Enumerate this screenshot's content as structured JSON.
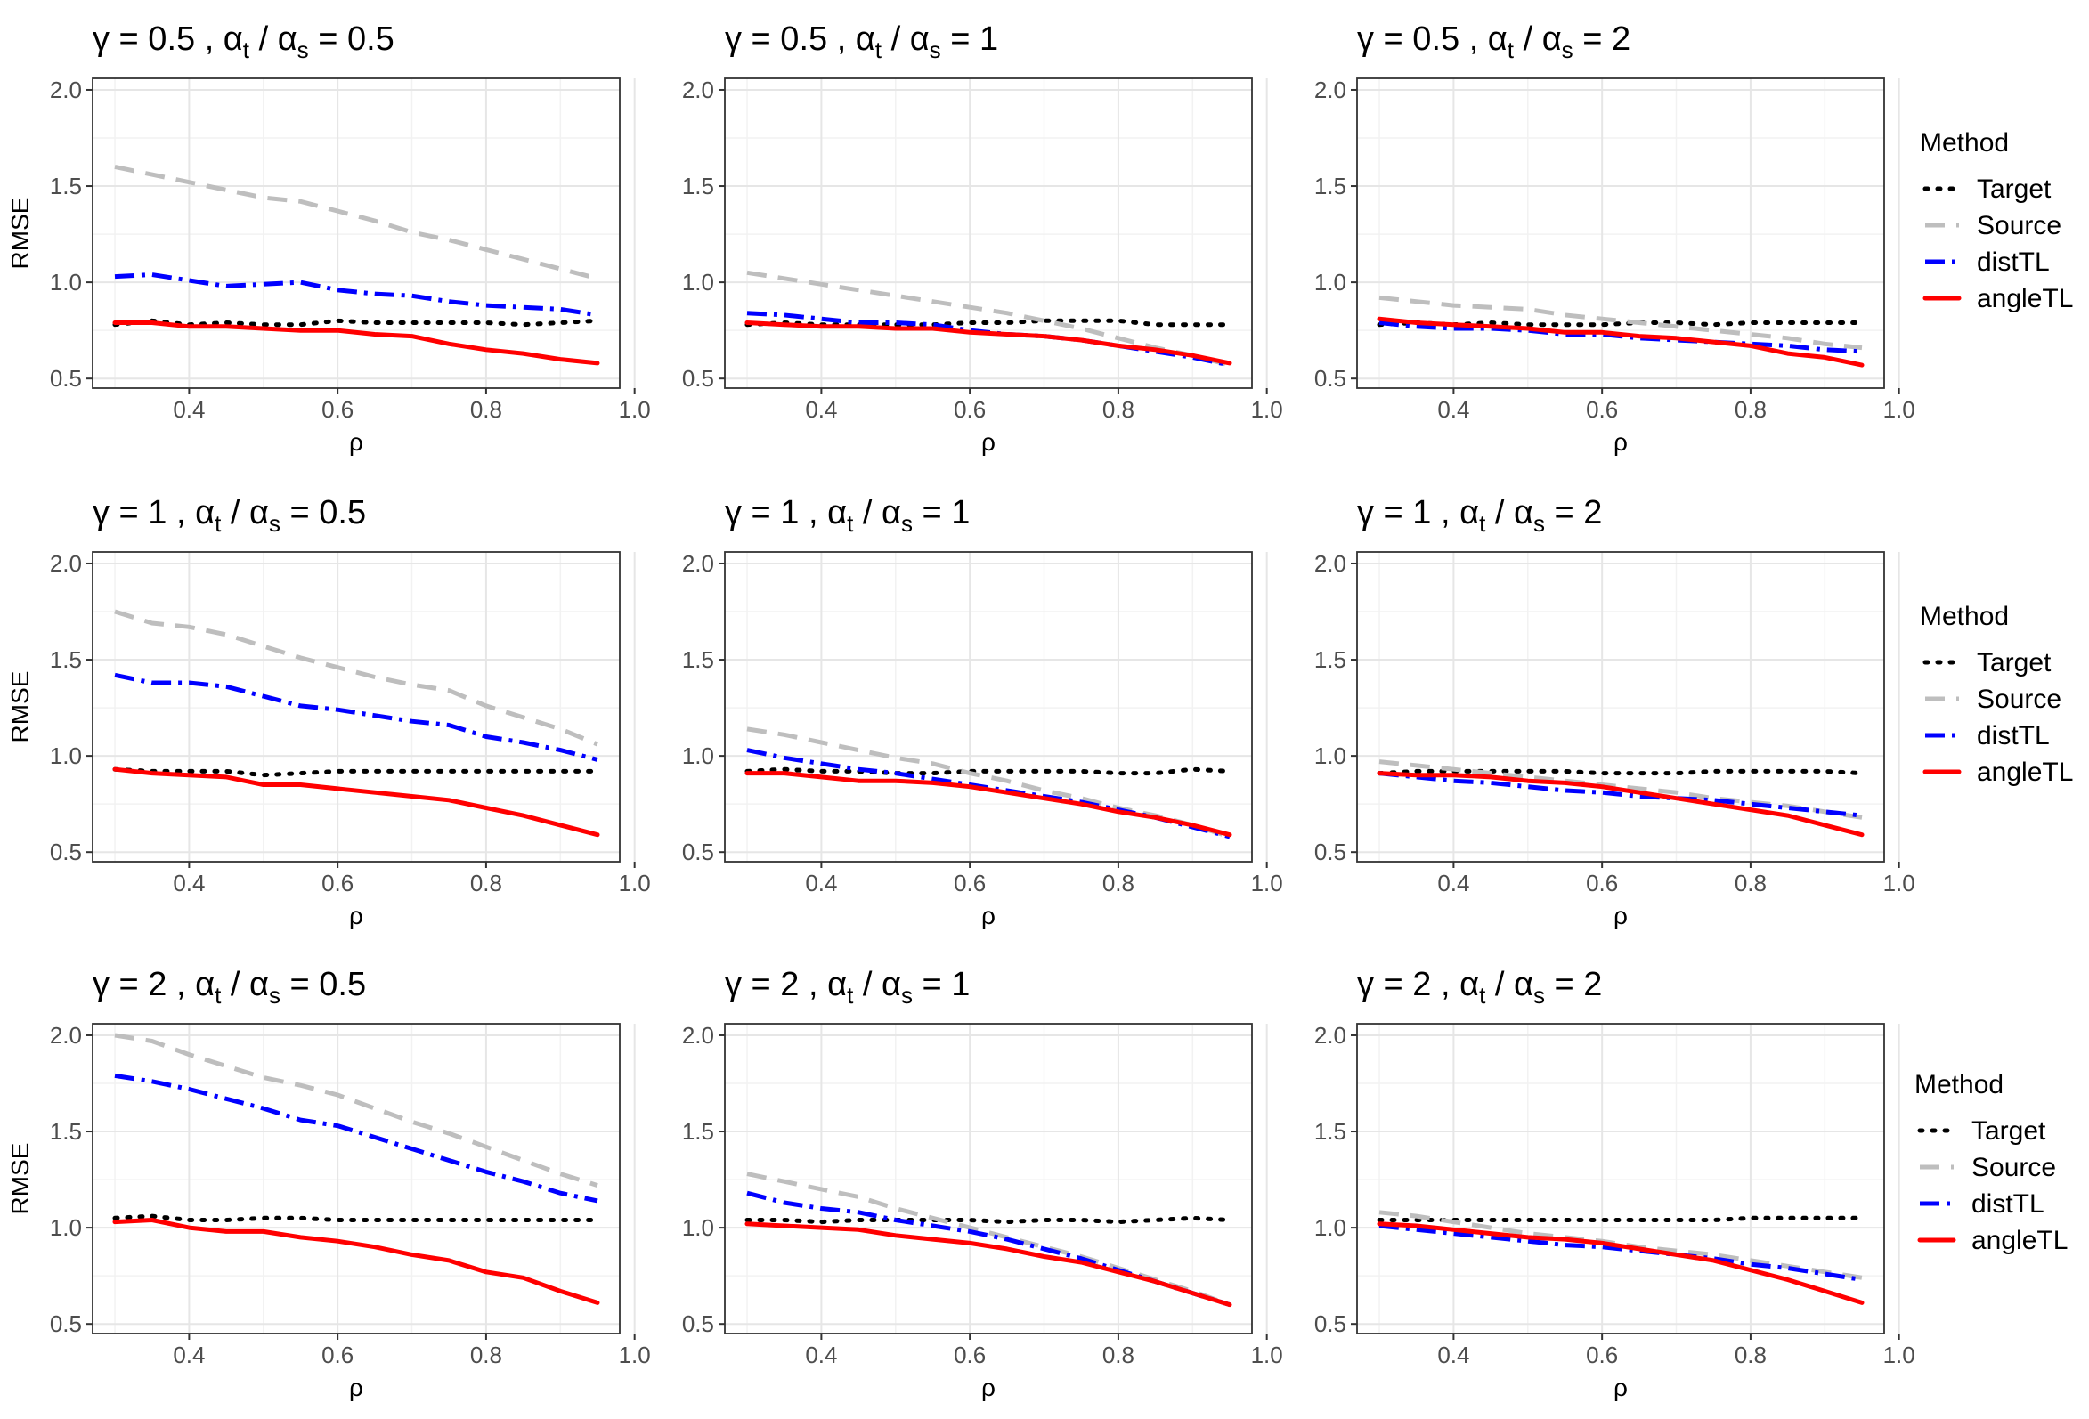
{
  "figure_title": "",
  "legend": {
    "title": "Method",
    "items": [
      {
        "label": "Target",
        "color": "#000000",
        "dash": "dotted"
      },
      {
        "label": "Source",
        "color": "#bebebe",
        "dash": "dashed"
      },
      {
        "label": "distTL",
        "color": "#0000ff",
        "dash": "dotdash"
      },
      {
        "label": "angleTL",
        "color": "#ff0000",
        "dash": "solid"
      }
    ]
  },
  "chart_data": [
    {
      "type": "line",
      "title": {
        "gamma": "0.5",
        "ratio": "0.5"
      },
      "xlabel": "ρ",
      "ylabel": "RMSE",
      "xlim": [
        0.27,
        0.98
      ],
      "ylim": [
        0.45,
        2.06
      ],
      "xticks": [
        "0.4",
        "0.6",
        "0.8",
        "1.0"
      ],
      "yticks": [
        "0.5",
        "1.0",
        "1.5",
        "2.0"
      ],
      "x": [
        0.3,
        0.35,
        0.4,
        0.45,
        0.5,
        0.55,
        0.6,
        0.65,
        0.7,
        0.75,
        0.8,
        0.85,
        0.9,
        0.95
      ],
      "series": [
        {
          "name": "Target",
          "values": [
            0.78,
            0.8,
            0.78,
            0.79,
            0.78,
            0.78,
            0.8,
            0.79,
            0.79,
            0.79,
            0.79,
            0.78,
            0.79,
            0.8
          ]
        },
        {
          "name": "Source",
          "values": [
            1.6,
            1.56,
            1.52,
            1.48,
            1.44,
            1.42,
            1.37,
            1.32,
            1.26,
            1.22,
            1.17,
            1.12,
            1.07,
            1.02
          ]
        },
        {
          "name": "distTL",
          "values": [
            1.03,
            1.04,
            1.01,
            0.98,
            0.99,
            1.0,
            0.96,
            0.94,
            0.93,
            0.9,
            0.88,
            0.87,
            0.86,
            0.83
          ]
        },
        {
          "name": "angleTL",
          "values": [
            0.79,
            0.79,
            0.77,
            0.77,
            0.76,
            0.75,
            0.75,
            0.73,
            0.72,
            0.68,
            0.65,
            0.63,
            0.6,
            0.58
          ]
        }
      ]
    },
    {
      "type": "line",
      "title": {
        "gamma": "0.5",
        "ratio": "1"
      },
      "xlabel": "ρ",
      "ylabel": "",
      "xlim": [
        0.27,
        0.98
      ],
      "ylim": [
        0.45,
        2.06
      ],
      "xticks": [
        "0.4",
        "0.6",
        "0.8",
        "1.0"
      ],
      "yticks": [
        "0.5",
        "1.0",
        "1.5",
        "2.0"
      ],
      "x": [
        0.3,
        0.35,
        0.4,
        0.45,
        0.5,
        0.55,
        0.6,
        0.65,
        0.7,
        0.75,
        0.8,
        0.85,
        0.9,
        0.95
      ],
      "series": [
        {
          "name": "Target",
          "values": [
            0.78,
            0.79,
            0.78,
            0.78,
            0.78,
            0.78,
            0.79,
            0.79,
            0.8,
            0.8,
            0.8,
            0.78,
            0.78,
            0.78
          ]
        },
        {
          "name": "Source",
          "values": [
            1.05,
            1.02,
            0.99,
            0.96,
            0.93,
            0.9,
            0.87,
            0.84,
            0.8,
            0.76,
            0.71,
            0.66,
            0.62,
            0.57
          ]
        },
        {
          "name": "distTL",
          "values": [
            0.84,
            0.83,
            0.81,
            0.79,
            0.79,
            0.78,
            0.75,
            0.73,
            0.72,
            0.7,
            0.67,
            0.64,
            0.61,
            0.57
          ]
        },
        {
          "name": "angleTL",
          "values": [
            0.79,
            0.78,
            0.77,
            0.77,
            0.76,
            0.76,
            0.74,
            0.73,
            0.72,
            0.7,
            0.67,
            0.65,
            0.62,
            0.58
          ]
        }
      ]
    },
    {
      "type": "line",
      "title": {
        "gamma": "0.5",
        "ratio": "2"
      },
      "xlabel": "ρ",
      "ylabel": "",
      "xlim": [
        0.27,
        0.98
      ],
      "ylim": [
        0.45,
        2.06
      ],
      "xticks": [
        "0.4",
        "0.6",
        "0.8",
        "1.0"
      ],
      "yticks": [
        "0.5",
        "1.0",
        "1.5",
        "2.0"
      ],
      "x": [
        0.3,
        0.35,
        0.4,
        0.45,
        0.5,
        0.55,
        0.6,
        0.65,
        0.7,
        0.75,
        0.8,
        0.85,
        0.9,
        0.95
      ],
      "series": [
        {
          "name": "Target",
          "values": [
            0.78,
            0.79,
            0.78,
            0.79,
            0.78,
            0.78,
            0.78,
            0.79,
            0.79,
            0.78,
            0.79,
            0.79,
            0.79,
            0.79
          ]
        },
        {
          "name": "Source",
          "values": [
            0.92,
            0.9,
            0.88,
            0.87,
            0.86,
            0.83,
            0.81,
            0.79,
            0.77,
            0.75,
            0.73,
            0.71,
            0.68,
            0.66
          ]
        },
        {
          "name": "distTL",
          "values": [
            0.79,
            0.77,
            0.76,
            0.76,
            0.75,
            0.73,
            0.73,
            0.71,
            0.7,
            0.69,
            0.68,
            0.67,
            0.65,
            0.64
          ]
        },
        {
          "name": "angleTL",
          "values": [
            0.81,
            0.79,
            0.78,
            0.77,
            0.76,
            0.74,
            0.74,
            0.72,
            0.71,
            0.69,
            0.67,
            0.63,
            0.61,
            0.57
          ]
        }
      ]
    },
    {
      "type": "line",
      "title": {
        "gamma": "1",
        "ratio": "0.5"
      },
      "xlabel": "ρ",
      "ylabel": "RMSE",
      "xlim": [
        0.27,
        0.98
      ],
      "ylim": [
        0.45,
        2.06
      ],
      "xticks": [
        "0.4",
        "0.6",
        "0.8",
        "1.0"
      ],
      "yticks": [
        "0.5",
        "1.0",
        "1.5",
        "2.0"
      ],
      "x": [
        0.3,
        0.35,
        0.4,
        0.45,
        0.5,
        0.55,
        0.6,
        0.65,
        0.7,
        0.75,
        0.8,
        0.85,
        0.9,
        0.95
      ],
      "series": [
        {
          "name": "Target",
          "values": [
            0.93,
            0.92,
            0.92,
            0.92,
            0.9,
            0.91,
            0.92,
            0.92,
            0.92,
            0.92,
            0.92,
            0.92,
            0.92,
            0.92
          ]
        },
        {
          "name": "Source",
          "values": [
            1.75,
            1.69,
            1.67,
            1.63,
            1.57,
            1.51,
            1.46,
            1.41,
            1.37,
            1.34,
            1.26,
            1.2,
            1.14,
            1.06
          ]
        },
        {
          "name": "distTL",
          "values": [
            1.42,
            1.38,
            1.38,
            1.36,
            1.31,
            1.26,
            1.24,
            1.21,
            1.18,
            1.16,
            1.1,
            1.07,
            1.03,
            0.98
          ]
        },
        {
          "name": "angleTL",
          "values": [
            0.93,
            0.91,
            0.9,
            0.89,
            0.85,
            0.85,
            0.83,
            0.81,
            0.79,
            0.77,
            0.73,
            0.69,
            0.64,
            0.59
          ]
        }
      ]
    },
    {
      "type": "line",
      "title": {
        "gamma": "1",
        "ratio": "1"
      },
      "xlabel": "ρ",
      "ylabel": "",
      "xlim": [
        0.27,
        0.98
      ],
      "ylim": [
        0.45,
        2.06
      ],
      "xticks": [
        "0.4",
        "0.6",
        "0.8",
        "1.0"
      ],
      "yticks": [
        "0.5",
        "1.0",
        "1.5",
        "2.0"
      ],
      "x": [
        0.3,
        0.35,
        0.4,
        0.45,
        0.5,
        0.55,
        0.6,
        0.65,
        0.7,
        0.75,
        0.8,
        0.85,
        0.9,
        0.95
      ],
      "series": [
        {
          "name": "Target",
          "values": [
            0.92,
            0.93,
            0.92,
            0.92,
            0.91,
            0.91,
            0.92,
            0.92,
            0.92,
            0.92,
            0.91,
            0.91,
            0.93,
            0.92
          ]
        },
        {
          "name": "Source",
          "values": [
            1.14,
            1.11,
            1.07,
            1.03,
            0.99,
            0.96,
            0.91,
            0.87,
            0.82,
            0.78,
            0.73,
            0.69,
            0.64,
            0.58
          ]
        },
        {
          "name": "distTL",
          "values": [
            1.03,
            0.99,
            0.96,
            0.93,
            0.91,
            0.88,
            0.85,
            0.82,
            0.79,
            0.76,
            0.72,
            0.68,
            0.63,
            0.58
          ]
        },
        {
          "name": "angleTL",
          "values": [
            0.91,
            0.91,
            0.89,
            0.87,
            0.87,
            0.86,
            0.84,
            0.81,
            0.78,
            0.75,
            0.71,
            0.68,
            0.64,
            0.59
          ]
        }
      ]
    },
    {
      "type": "line",
      "title": {
        "gamma": "1",
        "ratio": "2"
      },
      "xlabel": "ρ",
      "ylabel": "",
      "xlim": [
        0.27,
        0.98
      ],
      "ylim": [
        0.45,
        2.06
      ],
      "xticks": [
        "0.4",
        "0.6",
        "0.8",
        "1.0"
      ],
      "yticks": [
        "0.5",
        "1.0",
        "1.5",
        "2.0"
      ],
      "x": [
        0.3,
        0.35,
        0.4,
        0.45,
        0.5,
        0.55,
        0.6,
        0.65,
        0.7,
        0.75,
        0.8,
        0.85,
        0.9,
        0.95
      ],
      "series": [
        {
          "name": "Target",
          "values": [
            0.91,
            0.92,
            0.92,
            0.92,
            0.92,
            0.92,
            0.91,
            0.91,
            0.91,
            0.92,
            0.92,
            0.92,
            0.92,
            0.91
          ]
        },
        {
          "name": "Source",
          "values": [
            0.97,
            0.95,
            0.93,
            0.91,
            0.89,
            0.87,
            0.85,
            0.83,
            0.81,
            0.78,
            0.76,
            0.74,
            0.71,
            0.68
          ]
        },
        {
          "name": "distTL",
          "values": [
            0.91,
            0.89,
            0.87,
            0.86,
            0.84,
            0.82,
            0.81,
            0.79,
            0.78,
            0.77,
            0.75,
            0.73,
            0.71,
            0.69
          ]
        },
        {
          "name": "angleTL",
          "values": [
            0.91,
            0.9,
            0.9,
            0.89,
            0.87,
            0.86,
            0.84,
            0.81,
            0.78,
            0.75,
            0.72,
            0.69,
            0.64,
            0.59
          ]
        }
      ]
    },
    {
      "type": "line",
      "title": {
        "gamma": "2",
        "ratio": "0.5"
      },
      "xlabel": "ρ",
      "ylabel": "RMSE",
      "xlim": [
        0.27,
        0.98
      ],
      "ylim": [
        0.45,
        2.06
      ],
      "xticks": [
        "0.4",
        "0.6",
        "0.8",
        "1.0"
      ],
      "yticks": [
        "0.5",
        "1.0",
        "1.5",
        "2.0"
      ],
      "x": [
        0.3,
        0.35,
        0.4,
        0.45,
        0.5,
        0.55,
        0.6,
        0.65,
        0.7,
        0.75,
        0.8,
        0.85,
        0.9,
        0.95
      ],
      "series": [
        {
          "name": "Target",
          "values": [
            1.05,
            1.06,
            1.04,
            1.04,
            1.05,
            1.05,
            1.04,
            1.04,
            1.04,
            1.04,
            1.04,
            1.04,
            1.04,
            1.04
          ]
        },
        {
          "name": "Source",
          "values": [
            2.0,
            1.97,
            1.9,
            1.84,
            1.78,
            1.74,
            1.69,
            1.62,
            1.55,
            1.49,
            1.42,
            1.35,
            1.28,
            1.22
          ]
        },
        {
          "name": "distTL",
          "values": [
            1.79,
            1.76,
            1.72,
            1.67,
            1.62,
            1.56,
            1.53,
            1.47,
            1.41,
            1.35,
            1.29,
            1.24,
            1.18,
            1.14
          ]
        },
        {
          "name": "angleTL",
          "values": [
            1.03,
            1.04,
            1.0,
            0.98,
            0.98,
            0.95,
            0.93,
            0.9,
            0.86,
            0.83,
            0.77,
            0.74,
            0.67,
            0.61
          ]
        }
      ]
    },
    {
      "type": "line",
      "title": {
        "gamma": "2",
        "ratio": "1"
      },
      "xlabel": "ρ",
      "ylabel": "",
      "xlim": [
        0.27,
        0.98
      ],
      "ylim": [
        0.45,
        2.06
      ],
      "xticks": [
        "0.4",
        "0.6",
        "0.8",
        "1.0"
      ],
      "yticks": [
        "0.5",
        "1.0",
        "1.5",
        "2.0"
      ],
      "x": [
        0.3,
        0.35,
        0.4,
        0.45,
        0.5,
        0.55,
        0.6,
        0.65,
        0.7,
        0.75,
        0.8,
        0.85,
        0.9,
        0.95
      ],
      "series": [
        {
          "name": "Target",
          "values": [
            1.04,
            1.04,
            1.03,
            1.04,
            1.04,
            1.04,
            1.04,
            1.03,
            1.04,
            1.04,
            1.03,
            1.04,
            1.05,
            1.04
          ]
        },
        {
          "name": "Source",
          "values": [
            1.28,
            1.24,
            1.2,
            1.16,
            1.1,
            1.05,
            1.0,
            0.95,
            0.9,
            0.85,
            0.79,
            0.73,
            0.67,
            0.6
          ]
        },
        {
          "name": "distTL",
          "values": [
            1.18,
            1.13,
            1.1,
            1.08,
            1.04,
            1.01,
            0.98,
            0.94,
            0.89,
            0.84,
            0.78,
            0.72,
            0.66,
            0.6
          ]
        },
        {
          "name": "angleTL",
          "values": [
            1.02,
            1.01,
            1.0,
            0.99,
            0.96,
            0.94,
            0.92,
            0.89,
            0.85,
            0.82,
            0.77,
            0.72,
            0.66,
            0.6
          ]
        }
      ]
    },
    {
      "type": "line",
      "title": {
        "gamma": "2",
        "ratio": "2"
      },
      "xlabel": "ρ",
      "ylabel": "",
      "xlim": [
        0.27,
        0.98
      ],
      "ylim": [
        0.45,
        2.06
      ],
      "xticks": [
        "0.4",
        "0.6",
        "0.8",
        "1.0"
      ],
      "yticks": [
        "0.5",
        "1.0",
        "1.5",
        "2.0"
      ],
      "x": [
        0.3,
        0.35,
        0.4,
        0.45,
        0.5,
        0.55,
        0.6,
        0.65,
        0.7,
        0.75,
        0.8,
        0.85,
        0.9,
        0.95
      ],
      "series": [
        {
          "name": "Target",
          "values": [
            1.04,
            1.04,
            1.04,
            1.04,
            1.04,
            1.04,
            1.04,
            1.04,
            1.04,
            1.04,
            1.05,
            1.05,
            1.05,
            1.05
          ]
        },
        {
          "name": "Source",
          "values": [
            1.08,
            1.06,
            1.03,
            1.0,
            0.97,
            0.95,
            0.93,
            0.9,
            0.88,
            0.86,
            0.83,
            0.8,
            0.77,
            0.74
          ]
        },
        {
          "name": "distTL",
          "values": [
            1.01,
            0.99,
            0.97,
            0.95,
            0.93,
            0.91,
            0.9,
            0.88,
            0.86,
            0.84,
            0.81,
            0.79,
            0.76,
            0.73
          ]
        },
        {
          "name": "angleTL",
          "values": [
            1.02,
            1.01,
            0.99,
            0.97,
            0.95,
            0.94,
            0.92,
            0.89,
            0.86,
            0.83,
            0.78,
            0.73,
            0.67,
            0.61
          ]
        }
      ]
    }
  ]
}
